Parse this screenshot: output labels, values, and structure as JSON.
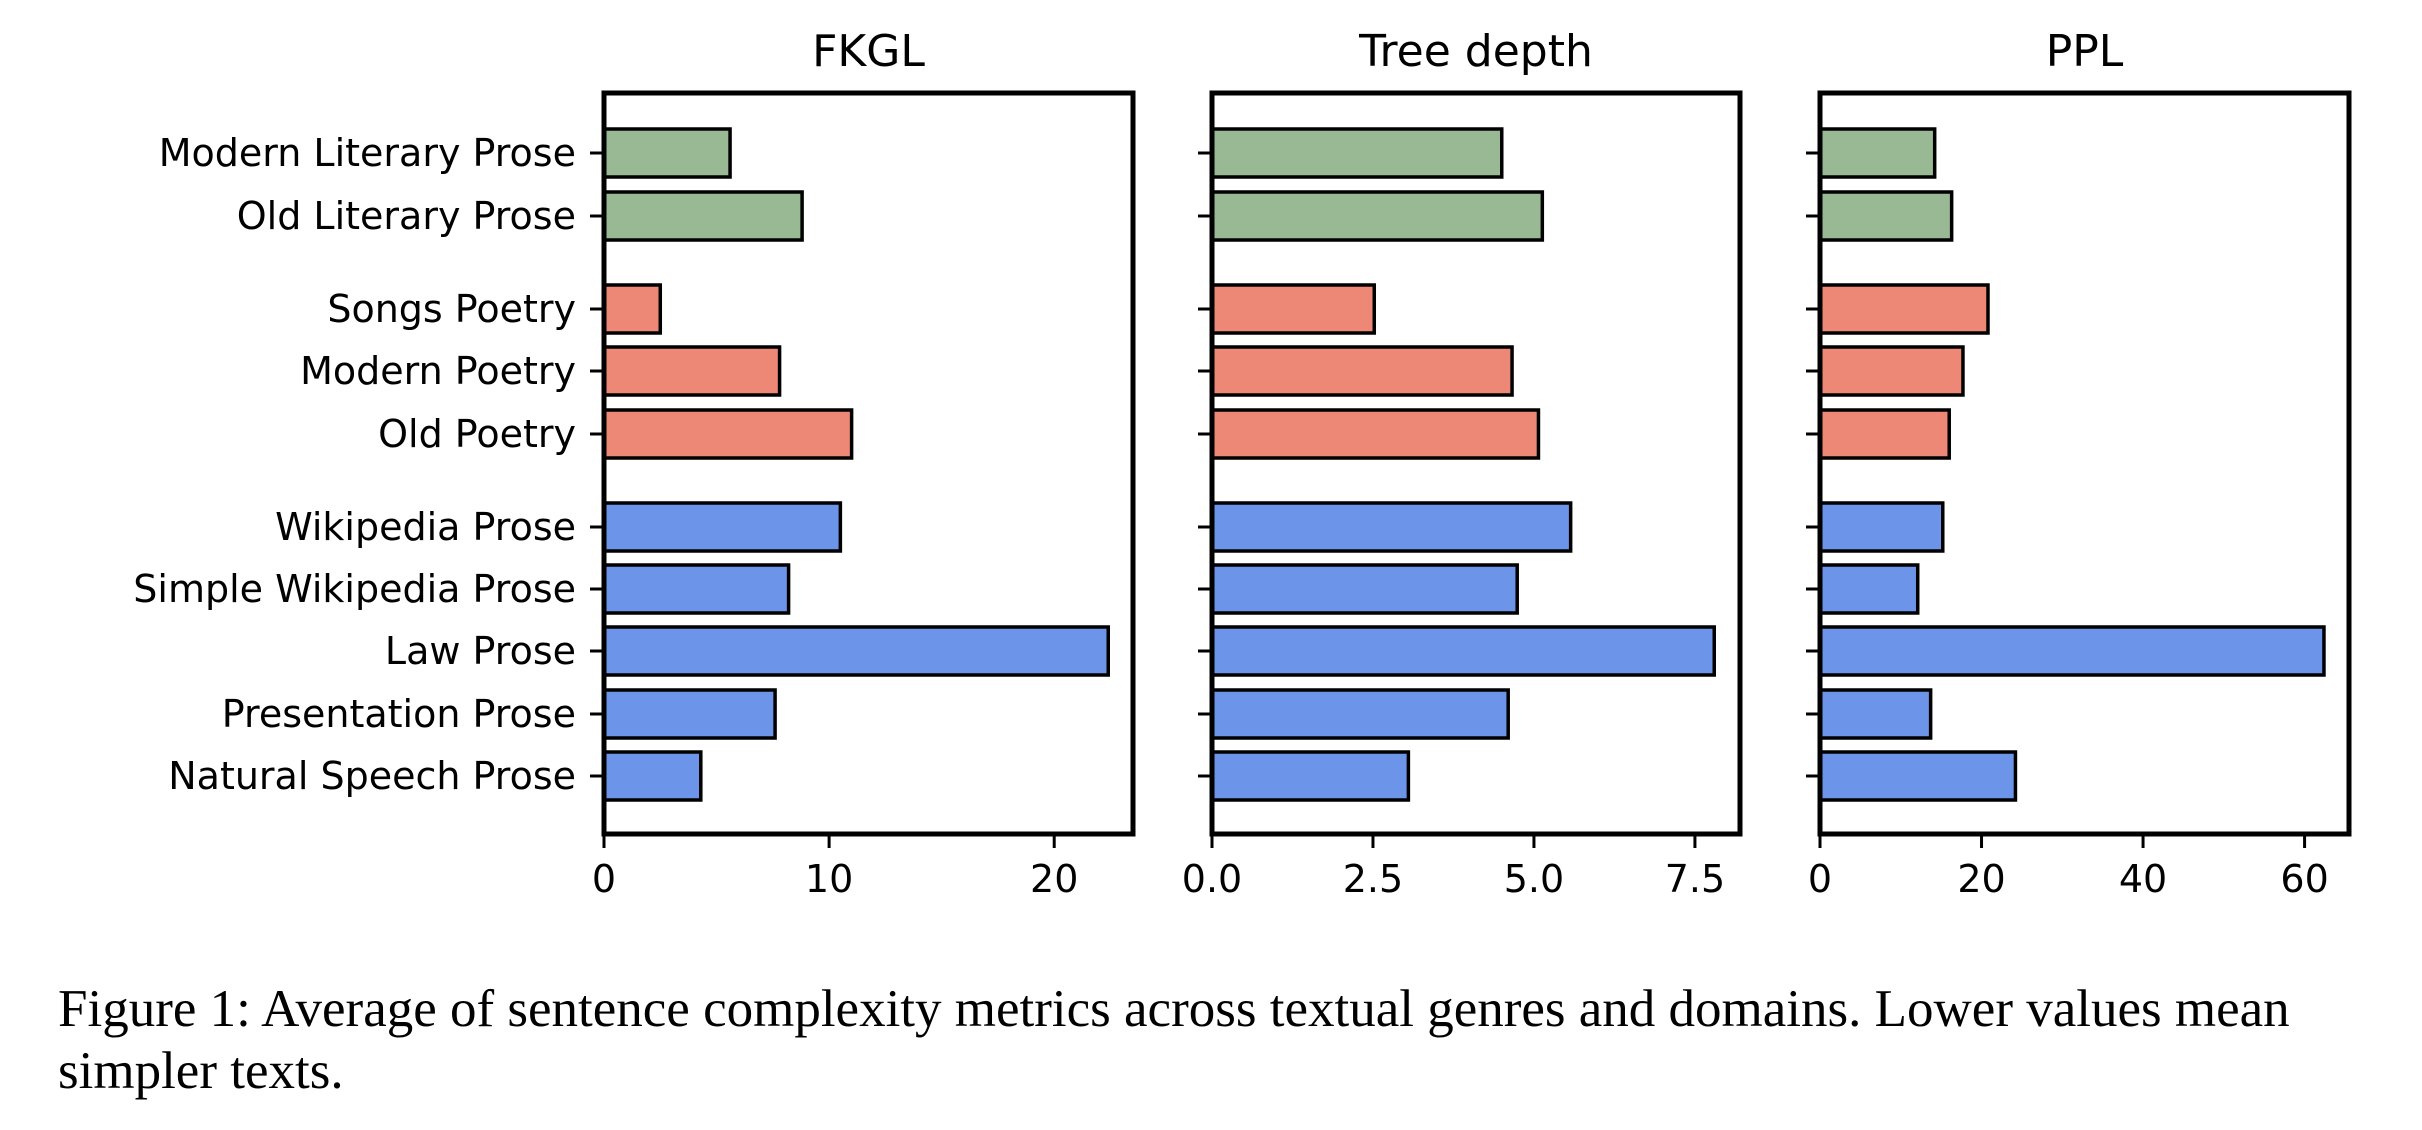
{
  "chart_data": [
    {
      "type": "bar",
      "orientation": "horizontal",
      "title": "FKGL",
      "xlabel": "",
      "ylabel": "",
      "categories": [
        "Modern Literary Prose",
        "Old Literary Prose",
        "Songs Poetry",
        "Modern Poetry",
        "Old Poetry",
        "Wikipedia Prose",
        "Simple Wikipedia Prose",
        "Law Prose",
        "Presentation Prose",
        "Natural Speech Prose"
      ],
      "values": [
        5.6,
        8.8,
        2.5,
        7.8,
        11.0,
        10.5,
        8.2,
        22.4,
        7.6,
        4.3
      ],
      "xlim": [
        0,
        23.5
      ],
      "xticks": [
        0,
        10,
        20
      ],
      "xtick_labels": [
        "0",
        "10",
        "20"
      ],
      "grid": false
    },
    {
      "type": "bar",
      "orientation": "horizontal",
      "title": "Tree depth",
      "xlabel": "",
      "ylabel": "",
      "categories": [
        "Modern Literary Prose",
        "Old Literary Prose",
        "Songs Poetry",
        "Modern Poetry",
        "Old Poetry",
        "Wikipedia Prose",
        "Simple Wikipedia Prose",
        "Law Prose",
        "Presentation Prose",
        "Natural Speech Prose"
      ],
      "values": [
        4.5,
        5.13,
        2.52,
        4.66,
        5.07,
        5.57,
        4.74,
        7.8,
        4.6,
        3.05
      ],
      "xlim": [
        0,
        8.2
      ],
      "xticks": [
        0,
        2.5,
        5,
        7.5
      ],
      "xtick_labels": [
        "0.0",
        "2.5",
        "5.0",
        "7.5"
      ],
      "grid": false
    },
    {
      "type": "bar",
      "orientation": "horizontal",
      "title": "PPL",
      "xlabel": "",
      "ylabel": "",
      "categories": [
        "Modern Literary Prose",
        "Old Literary Prose",
        "Songs Poetry",
        "Modern Poetry",
        "Old Poetry",
        "Wikipedia Prose",
        "Simple Wikipedia Prose",
        "Law Prose",
        "Presentation Prose",
        "Natural Speech Prose"
      ],
      "values": [
        14.2,
        16.3,
        20.8,
        17.7,
        16.0,
        15.2,
        12.1,
        62.4,
        13.7,
        24.2
      ],
      "xlim": [
        0,
        65.5
      ],
      "xticks": [
        0,
        20,
        40,
        60
      ],
      "xtick_labels": [
        "0",
        "20",
        "40",
        "60"
      ],
      "grid": false
    }
  ],
  "category_groups": [
    {
      "color": "#98b994",
      "categories": [
        "Modern Literary Prose",
        "Old Literary Prose"
      ]
    },
    {
      "color": "#ec8875",
      "categories": [
        "Songs Poetry",
        "Modern Poetry",
        "Old Poetry"
      ]
    },
    {
      "color": "#6c94e8",
      "categories": [
        "Wikipedia Prose",
        "Simple Wikipedia Prose",
        "Law Prose",
        "Presentation Prose",
        "Natural Speech Prose"
      ]
    }
  ],
  "colors": {
    "literary": "#98b994",
    "poetry": "#ec8875",
    "prose": "#6c94e8",
    "edge": "#000000"
  },
  "caption": "Figure 1: Average of sentence complexity metrics across textual genres and domains. Lower values mean simpler texts."
}
